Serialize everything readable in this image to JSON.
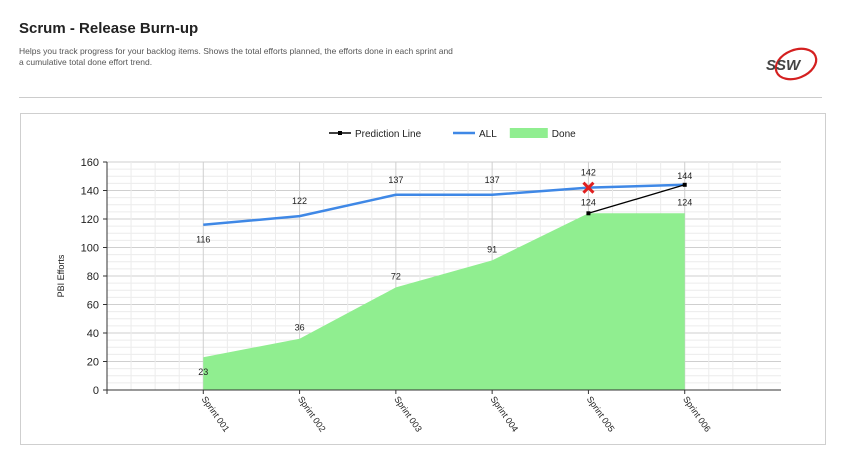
{
  "header": {
    "title": "Scrum - Release Burn-up",
    "description": "Helps you track progress for your backlog items. Shows the total efforts planned, the efforts done in each sprint and a cumulative total done effort trend.",
    "logo_text": "SSW"
  },
  "chart_data": {
    "type": "line",
    "title": "",
    "xlabel": "",
    "ylabel": "PBI Efforts",
    "categories": [
      "Sprint 001",
      "Sprint 002",
      "Sprint 003",
      "Sprint 004",
      "Sprint 005",
      "Sprint 006"
    ],
    "ylim": [
      0,
      160
    ],
    "yticks": [
      0,
      20,
      40,
      60,
      80,
      100,
      120,
      140,
      160
    ],
    "grid": true,
    "legend_position": "top-center",
    "series": [
      {
        "name": "Prediction Line",
        "type": "line",
        "color": "#000000",
        "values": [
          null,
          null,
          null,
          null,
          124,
          144
        ],
        "labels": [
          "",
          "",
          "",
          "",
          "124",
          "144"
        ]
      },
      {
        "name": "ALL",
        "type": "line",
        "color": "#3f88e6",
        "values": [
          116,
          122,
          137,
          137,
          142,
          144
        ],
        "labels": [
          "116",
          "122",
          "137",
          "137",
          "142",
          ""
        ]
      },
      {
        "name": "Done",
        "type": "area",
        "color": "#90ee90",
        "values": [
          23,
          36,
          72,
          91,
          124,
          124
        ],
        "labels": [
          "23",
          "36",
          "72",
          "91",
          "",
          "124"
        ]
      }
    ],
    "marker": {
      "category": "Sprint 005",
      "series": "ALL",
      "value": 142,
      "symbol": "x",
      "color": "#e02020"
    }
  }
}
